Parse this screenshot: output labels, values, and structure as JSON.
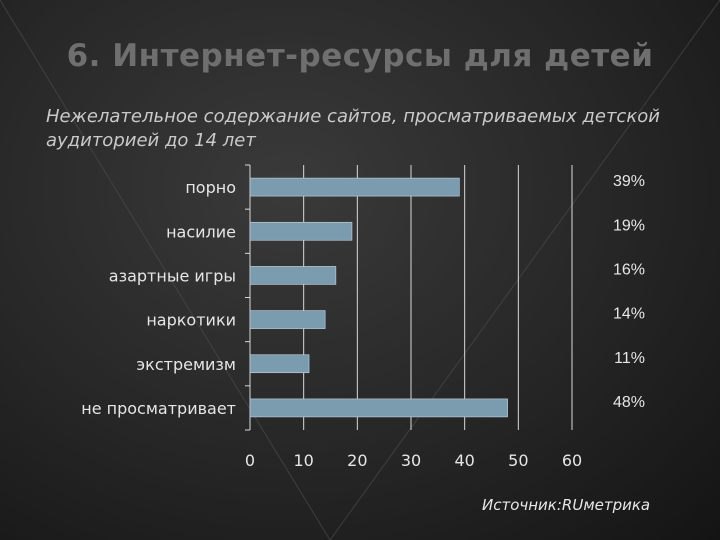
{
  "slide": {
    "title": "6. Интернет-ресурсы для детей",
    "subtitle": "Нежелательное содержание сайтов, просматриваемых детской аудиторией до 14 лет",
    "source": "Источник:RUметрика"
  },
  "colors": {
    "bar": "#7b9cae",
    "bar_border": "#c8d6de",
    "grid": "#d9d9d9",
    "text": "#e6e6e6"
  },
  "chart_data": {
    "type": "bar",
    "orientation": "horizontal",
    "categories": [
      "порно",
      "насилие",
      "азартные игры",
      "наркотики",
      "экстремизм",
      "не просматривает"
    ],
    "values": [
      39,
      19,
      16,
      14,
      11,
      48
    ],
    "data_labels": [
      "39%",
      "19%",
      "16%",
      "14%",
      "11%",
      "48%"
    ],
    "xlim": [
      0,
      60
    ],
    "xticks": [
      0,
      10,
      20,
      30,
      40,
      50,
      60
    ],
    "grid": true,
    "legend": false
  }
}
